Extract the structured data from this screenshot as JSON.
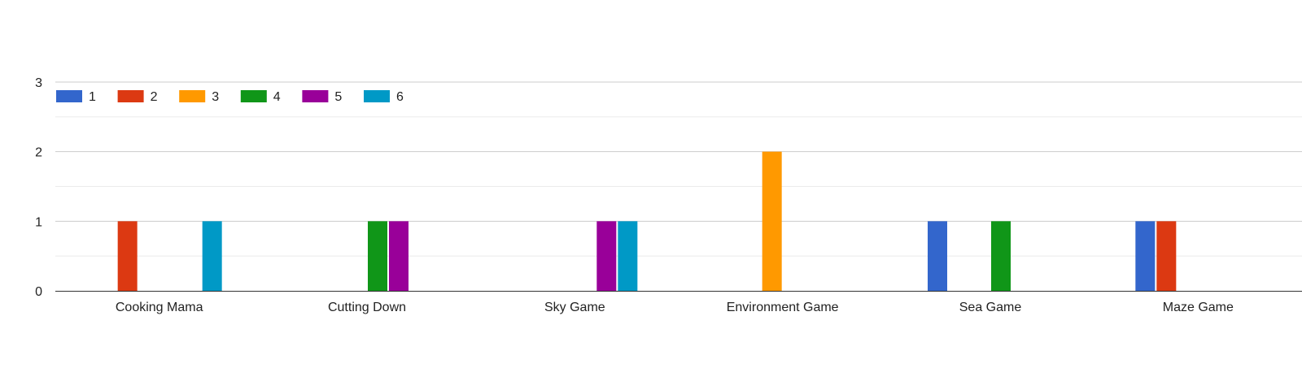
{
  "chart_data": {
    "type": "bar",
    "title": "",
    "xlabel": "",
    "ylabel": "",
    "categories": [
      "Cooking Mama",
      "Cutting Down",
      "Sky Game",
      "Environment Game",
      "Sea Game",
      "Maze Game"
    ],
    "series": [
      {
        "name": "1",
        "color": "#3366cc",
        "values": [
          0,
          0,
          0,
          0,
          1,
          1
        ]
      },
      {
        "name": "2",
        "color": "#dc3912",
        "values": [
          1,
          0,
          0,
          0,
          0,
          1
        ]
      },
      {
        "name": "3",
        "color": "#ff9900",
        "values": [
          0,
          0,
          0,
          2,
          0,
          0
        ]
      },
      {
        "name": "4",
        "color": "#109618",
        "values": [
          0,
          1,
          0,
          0,
          1,
          0
        ]
      },
      {
        "name": "5",
        "color": "#990099",
        "values": [
          0,
          1,
          1,
          0,
          0,
          0
        ]
      },
      {
        "name": "6",
        "color": "#0099c6",
        "values": [
          1,
          0,
          1,
          0,
          0,
          0
        ]
      }
    ],
    "ylim": [
      0,
      3
    ],
    "yticks": [
      "0",
      "1",
      "2",
      "3"
    ],
    "grid": true,
    "legend_position": "top-left"
  }
}
